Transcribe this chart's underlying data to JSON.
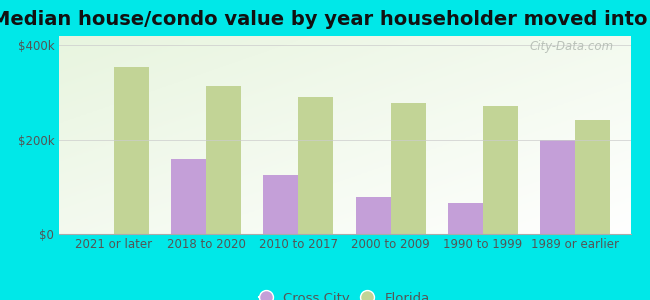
{
  "title": "Median house/condo value by year householder moved into unit",
  "categories": [
    "2021 or later",
    "2018 to 2020",
    "2010 to 2017",
    "2000 to 2009",
    "1990 to 1999",
    "1989 or earlier"
  ],
  "cross_city_values": [
    null,
    160000,
    125000,
    78000,
    65000,
    200000
  ],
  "florida_values": [
    355000,
    315000,
    290000,
    278000,
    272000,
    242000
  ],
  "cross_city_color": "#c49fd8",
  "florida_color": "#c2d496",
  "background_color": "#00e8e8",
  "plot_bg_color": "#e8f4e0",
  "ylim": [
    0,
    420000
  ],
  "yticks": [
    0,
    200000,
    400000
  ],
  "ytick_labels": [
    "$0",
    "$200k",
    "$400k"
  ],
  "bar_width": 0.38,
  "legend_cross_city": "Cross City",
  "legend_florida": "Florida",
  "watermark": "City-Data.com",
  "title_fontsize": 14,
  "tick_fontsize": 8.5,
  "legend_fontsize": 9.5
}
